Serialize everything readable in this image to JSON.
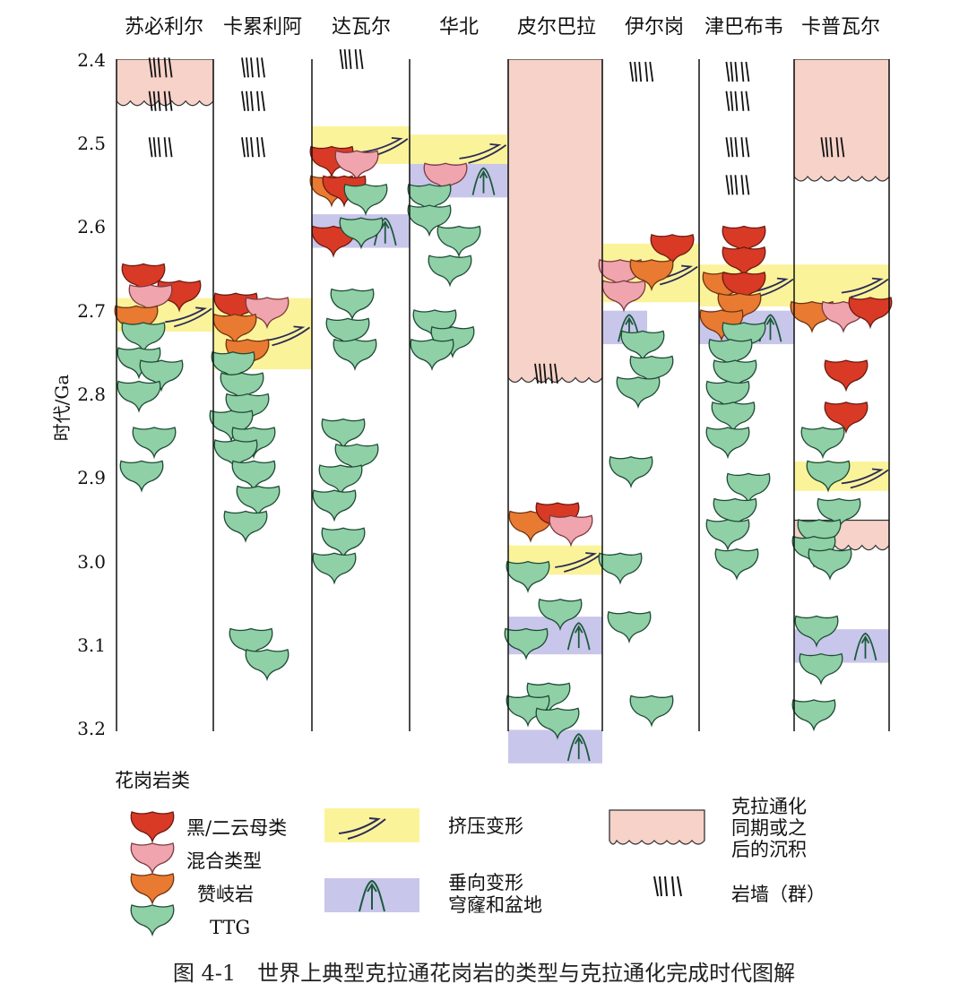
{
  "columns": [
    "苏必利尔",
    "卡累利阿",
    "达瓦尔",
    "华北",
    "皮尔巴拉",
    "伊尔岗",
    "津巴布韦",
    "卡普瓦尔"
  ],
  "y_axis": {
    "label": "时代/Ga",
    "ticks": [
      "2.4",
      "2.5",
      "2.6",
      "2.7",
      "2.8",
      "2.9",
      "3.0",
      "3.1",
      "3.2"
    ],
    "tick_values": [
      2.4,
      2.5,
      2.6,
      2.7,
      2.8,
      2.9,
      3.0,
      3.1,
      3.2
    ]
  },
  "legend": {
    "title": "花岗岩类",
    "granites": [
      {
        "key": "biotite",
        "label": "黑/二云母类",
        "color": "#d83a26"
      },
      {
        "key": "mixed",
        "label": "混合类型",
        "color": "#f0a4ad"
      },
      {
        "key": "sanukitoid",
        "label": "赞岐岩",
        "color": "#e97a32"
      },
      {
        "key": "ttg",
        "label": "TTG",
        "color": "#8fd0a6"
      }
    ],
    "compression": {
      "label": "挤压变形",
      "color": "#fbf39a"
    },
    "vertical": {
      "label_line1": "垂向变形",
      "label_line2": "穹窿和盆地",
      "color": "#c8c6ea"
    },
    "sediment": {
      "label_line1": "克拉通化",
      "label_line2": "同期或之",
      "label_line3": "后的沉积",
      "color": "#f6d2c8"
    },
    "dyke": {
      "label": "岩墙（群）"
    }
  },
  "caption": "图 4-1　世界上典型克拉通花岗岩的类型与克拉通化完成时代图解",
  "events": {
    "sediment": [
      {
        "col": 0,
        "from": 2.4,
        "to": 2.45
      },
      {
        "col": 4,
        "from": 2.4,
        "to": 2.78
      },
      {
        "col": 7,
        "from": 2.4,
        "to": 2.54
      },
      {
        "col": 7,
        "from": 2.95,
        "to": 2.98
      }
    ],
    "compression": [
      {
        "col": 0,
        "from": 2.685,
        "to": 2.725
      },
      {
        "col": 1,
        "from": 2.685,
        "to": 2.77
      },
      {
        "col": 2,
        "from": 2.48,
        "to": 2.525
      },
      {
        "col": 3,
        "from": 2.49,
        "to": 2.53
      },
      {
        "col": 4,
        "from": 2.98,
        "to": 3.015
      },
      {
        "col": 5,
        "from": 2.62,
        "to": 2.69
      },
      {
        "col": 6,
        "from": 2.645,
        "to": 2.695
      },
      {
        "col": 7,
        "from": 2.645,
        "to": 2.695
      },
      {
        "col": 7,
        "from": 2.88,
        "to": 2.915
      }
    ],
    "vertical": [
      {
        "col": 2,
        "from": 2.585,
        "to": 2.625
      },
      {
        "col": 3,
        "from": 2.525,
        "to": 2.565
      },
      {
        "col": 4,
        "from": 3.065,
        "to": 3.11
      },
      {
        "col": 4,
        "from": 3.2,
        "to": 3.24
      },
      {
        "col": 5,
        "from": 2.7,
        "to": 2.74
      },
      {
        "col": 6,
        "from": 2.7,
        "to": 2.74
      },
      {
        "col": 7,
        "from": 3.08,
        "to": 3.12
      }
    ],
    "dykes": [
      {
        "col": 0,
        "age": 2.41
      },
      {
        "col": 0,
        "age": 2.45
      },
      {
        "col": 0,
        "age": 2.505
      },
      {
        "col": 1,
        "age": 2.41
      },
      {
        "col": 1,
        "age": 2.45
      },
      {
        "col": 1,
        "age": 2.505
      },
      {
        "col": 2,
        "age": 2.4
      },
      {
        "col": 4,
        "age": 2.775
      },
      {
        "col": 5,
        "age": 2.415
      },
      {
        "col": 6,
        "age": 2.415
      },
      {
        "col": 6,
        "age": 2.45
      },
      {
        "col": 6,
        "age": 2.505
      },
      {
        "col": 6,
        "age": 2.55
      },
      {
        "col": 7,
        "age": 2.505
      }
    ],
    "granites": [
      {
        "type": "biotite",
        "col": 0,
        "dx": 30,
        "age": 2.655
      },
      {
        "type": "biotite",
        "col": 0,
        "dx": 70,
        "age": 2.675
      },
      {
        "type": "mixed",
        "col": 0,
        "dx": 38,
        "age": 2.68
      },
      {
        "type": "sanukitoid",
        "col": 0,
        "dx": 22,
        "age": 2.705
      },
      {
        "type": "ttg",
        "col": 0,
        "dx": 30,
        "age": 2.725
      },
      {
        "type": "ttg",
        "col": 0,
        "dx": 25,
        "age": 2.755
      },
      {
        "type": "ttg",
        "col": 0,
        "dx": 50,
        "age": 2.77
      },
      {
        "type": "ttg",
        "col": 0,
        "dx": 25,
        "age": 2.795
      },
      {
        "type": "ttg",
        "col": 0,
        "dx": 42,
        "age": 2.85
      },
      {
        "type": "ttg",
        "col": 0,
        "dx": 28,
        "age": 2.89
      },
      {
        "type": "biotite",
        "col": 1,
        "dx": 25,
        "age": 2.69
      },
      {
        "type": "mixed",
        "col": 1,
        "dx": 60,
        "age": 2.695
      },
      {
        "type": "sanukitoid",
        "col": 1,
        "dx": 24,
        "age": 2.715
      },
      {
        "type": "sanukitoid",
        "col": 1,
        "dx": 38,
        "age": 2.745
      },
      {
        "type": "ttg",
        "col": 1,
        "dx": 22,
        "age": 2.76
      },
      {
        "type": "ttg",
        "col": 1,
        "dx": 32,
        "age": 2.785
      },
      {
        "type": "ttg",
        "col": 1,
        "dx": 38,
        "age": 2.81
      },
      {
        "type": "ttg",
        "col": 1,
        "dx": 20,
        "age": 2.83
      },
      {
        "type": "ttg",
        "col": 1,
        "dx": 45,
        "age": 2.85
      },
      {
        "type": "ttg",
        "col": 1,
        "dx": 25,
        "age": 2.865
      },
      {
        "type": "ttg",
        "col": 1,
        "dx": 45,
        "age": 2.89
      },
      {
        "type": "ttg",
        "col": 1,
        "dx": 50,
        "age": 2.92
      },
      {
        "type": "ttg",
        "col": 1,
        "dx": 36,
        "age": 2.95
      },
      {
        "type": "ttg",
        "col": 1,
        "dx": 42,
        "age": 3.09
      },
      {
        "type": "ttg",
        "col": 1,
        "dx": 60,
        "age": 3.115
      },
      {
        "type": "biotite",
        "col": 2,
        "dx": 22,
        "age": 2.515
      },
      {
        "type": "mixed",
        "col": 2,
        "dx": 50,
        "age": 2.52
      },
      {
        "type": "sanukitoid",
        "col": 2,
        "dx": 22,
        "age": 2.55
      },
      {
        "type": "biotite",
        "col": 2,
        "dx": 36,
        "age": 2.55
      },
      {
        "type": "ttg",
        "col": 2,
        "dx": 60,
        "age": 2.56
      },
      {
        "type": "biotite",
        "col": 2,
        "dx": 24,
        "age": 2.61
      },
      {
        "type": "ttg",
        "col": 2,
        "dx": 55,
        "age": 2.6
      },
      {
        "type": "ttg",
        "col": 2,
        "dx": 45,
        "age": 2.685
      },
      {
        "type": "ttg",
        "col": 2,
        "dx": 40,
        "age": 2.72
      },
      {
        "type": "ttg",
        "col": 2,
        "dx": 48,
        "age": 2.745
      },
      {
        "type": "ttg",
        "col": 2,
        "dx": 35,
        "age": 2.84
      },
      {
        "type": "ttg",
        "col": 2,
        "dx": 50,
        "age": 2.87
      },
      {
        "type": "ttg",
        "col": 2,
        "dx": 32,
        "age": 2.895
      },
      {
        "type": "ttg",
        "col": 2,
        "dx": 25,
        "age": 2.925
      },
      {
        "type": "ttg",
        "col": 2,
        "dx": 35,
        "age": 2.97
      },
      {
        "type": "ttg",
        "col": 2,
        "dx": 25,
        "age": 3.0
      },
      {
        "type": "mixed",
        "col": 3,
        "dx": 40,
        "age": 2.535
      },
      {
        "type": "ttg",
        "col": 3,
        "dx": 22,
        "age": 2.56
      },
      {
        "type": "ttg",
        "col": 3,
        "dx": 22,
        "age": 2.585
      },
      {
        "type": "ttg",
        "col": 3,
        "dx": 55,
        "age": 2.61
      },
      {
        "type": "ttg",
        "col": 3,
        "dx": 45,
        "age": 2.645
      },
      {
        "type": "ttg",
        "col": 3,
        "dx": 28,
        "age": 2.71
      },
      {
        "type": "ttg",
        "col": 3,
        "dx": 48,
        "age": 2.73
      },
      {
        "type": "ttg",
        "col": 3,
        "dx": 25,
        "age": 2.745
      },
      {
        "type": "sanukitoid",
        "col": 4,
        "dx": 25,
        "age": 2.95
      },
      {
        "type": "biotite",
        "col": 4,
        "dx": 55,
        "age": 2.94
      },
      {
        "type": "mixed",
        "col": 4,
        "dx": 70,
        "age": 2.955
      },
      {
        "type": "ttg",
        "col": 4,
        "dx": 22,
        "age": 3.01
      },
      {
        "type": "ttg",
        "col": 4,
        "dx": 58,
        "age": 3.055
      },
      {
        "type": "ttg",
        "col": 4,
        "dx": 20,
        "age": 3.09
      },
      {
        "type": "ttg",
        "col": 4,
        "dx": 45,
        "age": 3.155
      },
      {
        "type": "ttg",
        "col": 4,
        "dx": 22,
        "age": 3.17
      },
      {
        "type": "ttg",
        "col": 4,
        "dx": 55,
        "age": 3.185
      },
      {
        "type": "biotite",
        "col": 5,
        "dx": 78,
        "age": 2.62
      },
      {
        "type": "mixed",
        "col": 5,
        "dx": 20,
        "age": 2.65
      },
      {
        "type": "sanukitoid",
        "col": 5,
        "dx": 55,
        "age": 2.65
      },
      {
        "type": "mixed",
        "col": 5,
        "dx": 24,
        "age": 2.675
      },
      {
        "type": "ttg",
        "col": 5,
        "dx": 45,
        "age": 2.735
      },
      {
        "type": "ttg",
        "col": 5,
        "dx": 55,
        "age": 2.765
      },
      {
        "type": "ttg",
        "col": 5,
        "dx": 40,
        "age": 2.79
      },
      {
        "type": "ttg",
        "col": 5,
        "dx": 32,
        "age": 2.885
      },
      {
        "type": "ttg",
        "col": 5,
        "dx": 20,
        "age": 3.0
      },
      {
        "type": "ttg",
        "col": 5,
        "dx": 30,
        "age": 3.07
      },
      {
        "type": "ttg",
        "col": 5,
        "dx": 55,
        "age": 3.17
      },
      {
        "type": "biotite",
        "col": 6,
        "dx": 50,
        "age": 2.61
      },
      {
        "type": "biotite",
        "col": 6,
        "dx": 50,
        "age": 2.635
      },
      {
        "type": "sanukitoid",
        "col": 6,
        "dx": 28,
        "age": 2.665
      },
      {
        "type": "biotite",
        "col": 6,
        "dx": 50,
        "age": 2.665
      },
      {
        "type": "sanukitoid",
        "col": 6,
        "dx": 45,
        "age": 2.69
      },
      {
        "type": "sanukitoid",
        "col": 6,
        "dx": 25,
        "age": 2.71
      },
      {
        "type": "ttg",
        "col": 6,
        "dx": 50,
        "age": 2.725
      },
      {
        "type": "ttg",
        "col": 6,
        "dx": 35,
        "age": 2.745
      },
      {
        "type": "ttg",
        "col": 6,
        "dx": 40,
        "age": 2.77
      },
      {
        "type": "ttg",
        "col": 6,
        "dx": 32,
        "age": 2.795
      },
      {
        "type": "ttg",
        "col": 6,
        "dx": 38,
        "age": 2.82
      },
      {
        "type": "ttg",
        "col": 6,
        "dx": 32,
        "age": 2.85
      },
      {
        "type": "ttg",
        "col": 6,
        "dx": 55,
        "age": 2.905
      },
      {
        "type": "ttg",
        "col": 6,
        "dx": 40,
        "age": 2.935
      },
      {
        "type": "ttg",
        "col": 6,
        "dx": 32,
        "age": 2.96
      },
      {
        "type": "ttg",
        "col": 6,
        "dx": 42,
        "age": 2.995
      },
      {
        "type": "sanukitoid",
        "col": 7,
        "dx": 20,
        "age": 2.7
      },
      {
        "type": "mixed",
        "col": 7,
        "dx": 55,
        "age": 2.7
      },
      {
        "type": "biotite",
        "col": 7,
        "dx": 85,
        "age": 2.695
      },
      {
        "type": "biotite",
        "col": 7,
        "dx": 58,
        "age": 2.77
      },
      {
        "type": "biotite",
        "col": 7,
        "dx": 58,
        "age": 2.82
      },
      {
        "type": "ttg",
        "col": 7,
        "dx": 32,
        "age": 2.85
      },
      {
        "type": "ttg",
        "col": 7,
        "dx": 38,
        "age": 2.89
      },
      {
        "type": "ttg",
        "col": 7,
        "dx": 50,
        "age": 2.935
      },
      {
        "type": "ttg",
        "col": 7,
        "dx": 28,
        "age": 2.96
      },
      {
        "type": "ttg",
        "col": 7,
        "dx": 22,
        "age": 2.98
      },
      {
        "type": "ttg",
        "col": 7,
        "dx": 40,
        "age": 2.995
      },
      {
        "type": "ttg",
        "col": 7,
        "dx": 25,
        "age": 3.075
      },
      {
        "type": "ttg",
        "col": 7,
        "dx": 30,
        "age": 3.12
      },
      {
        "type": "ttg",
        "col": 7,
        "dx": 22,
        "age": 3.175
      }
    ]
  }
}
